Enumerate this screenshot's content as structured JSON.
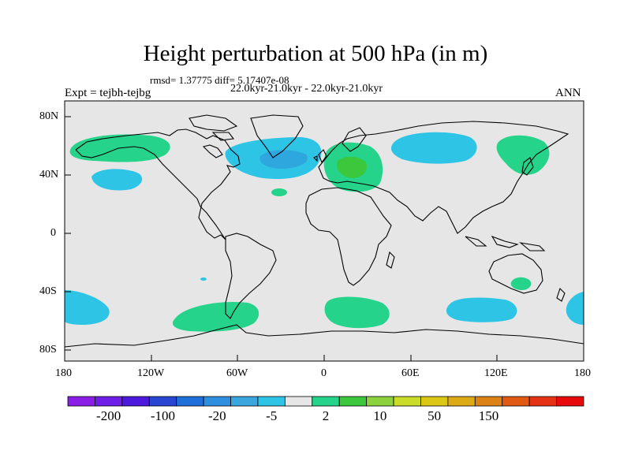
{
  "header": {
    "title": "Height perturbation at 500 hPa (in m)",
    "stats": "rmsd= 1.37775 diff= 5.17407e-08",
    "periods": "22.0kyr-21.0kyr - 22.0kyr-21.0kyr",
    "experiment": "Expt = tejbh-tejbg",
    "season": "ANN"
  },
  "axes": {
    "lat_ticks": [
      "80N",
      "40N",
      "0",
      "40S",
      "80S"
    ],
    "lon_ticks": [
      "180",
      "120W",
      "60W",
      "0",
      "60E",
      "120E",
      "180"
    ]
  },
  "colorbar": {
    "colors": [
      "#8a1ee6",
      "#6e1ee6",
      "#4d19dc",
      "#2846d2",
      "#1f6fdb",
      "#2e8ee0",
      "#3aa6de",
      "#2ec4e6",
      "#e6e6e6",
      "#26d38a",
      "#3cc83c",
      "#8cd23c",
      "#c8dc28",
      "#dcc814",
      "#dcaa14",
      "#dc8214",
      "#e05a14",
      "#e63214",
      "#e60a0a"
    ],
    "labels": [
      "-200",
      "-100",
      "-20",
      "-5",
      "2",
      "10",
      "50",
      "150"
    ]
  },
  "map": {
    "background": "#e6e6e6",
    "anomalies": [
      {
        "id": "npac-green",
        "color": "#26d38a"
      },
      {
        "id": "npac-blue",
        "color": "#2ec4e6"
      },
      {
        "id": "natl-blue",
        "color": "#2ec4e6"
      },
      {
        "id": "natl-core",
        "color": "#2ea6de"
      },
      {
        "id": "europe-green",
        "color": "#26d38a"
      },
      {
        "id": "europe-core",
        "color": "#3cc83c"
      },
      {
        "id": "asia-blue",
        "color": "#2ec4e6"
      },
      {
        "id": "nwpac-green",
        "color": "#26d38a"
      },
      {
        "id": "spac-blue",
        "color": "#2ec4e6"
      },
      {
        "id": "ssatl-green",
        "color": "#26d38a"
      },
      {
        "id": "satl-green",
        "color": "#26d38a"
      },
      {
        "id": "sind-blue",
        "color": "#2ec4e6"
      },
      {
        "id": "aus-green",
        "color": "#26d38a"
      },
      {
        "id": "spac-east-blue",
        "color": "#2ec4e6"
      }
    ]
  }
}
